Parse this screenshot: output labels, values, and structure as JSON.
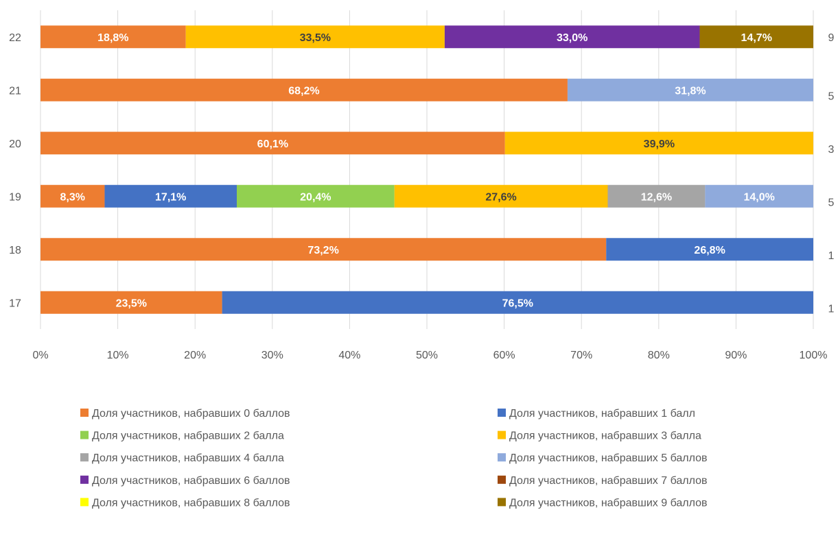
{
  "chart_data": {
    "type": "bar",
    "orientation": "horizontal",
    "stacked": "percent",
    "grid": true,
    "xlim": [
      0,
      100
    ],
    "x_ticks": [
      "0%",
      "10%",
      "20%",
      "30%",
      "40%",
      "50%",
      "60%",
      "70%",
      "80%",
      "90%",
      "100%"
    ],
    "categories": [
      "17",
      "18",
      "19",
      "20",
      "21",
      "22"
    ],
    "secondary_labels": [
      "1",
      "1",
      "5",
      "3",
      "5",
      "9"
    ],
    "legend_position": "bottom",
    "series": [
      {
        "name": "Доля участников, набравших 0 баллов",
        "color": "#ED7D31",
        "values": [
          23.5,
          73.2,
          8.3,
          60.1,
          68.2,
          18.8
        ],
        "labels": [
          "23,5%",
          "73,2%",
          "8,3%",
          "60,1%",
          "68,2%",
          "18,8%"
        ]
      },
      {
        "name": "Доля участников, набравших 1 балл",
        "color": "#4472C4",
        "values": [
          76.5,
          26.8,
          17.1,
          0,
          0,
          0
        ],
        "labels": [
          "76,5%",
          "26,8%",
          "17,1%",
          "",
          "",
          ""
        ]
      },
      {
        "name": "Доля участников, набравших 2 балла",
        "color": "#92D050",
        "values": [
          0,
          0,
          20.4,
          0,
          0,
          0
        ],
        "labels": [
          "",
          "",
          "20,4%",
          "",
          "",
          ""
        ]
      },
      {
        "name": "Доля участников, набравших 3 балла",
        "color": "#FFC000",
        "values": [
          0,
          0,
          27.6,
          39.9,
          0,
          33.5
        ],
        "labels": [
          "",
          "",
          "27,6%",
          "39,9%",
          "",
          "33,5%"
        ]
      },
      {
        "name": "Доля участников, набравших 4 балла",
        "color": "#A5A5A5",
        "values": [
          0,
          0,
          12.6,
          0,
          0,
          0
        ],
        "labels": [
          "",
          "",
          "12,6%",
          "",
          "",
          ""
        ]
      },
      {
        "name": "Доля участников, набравших 5 баллов",
        "color": "#8FAADC",
        "values": [
          0,
          0,
          14.0,
          0,
          31.8,
          0
        ],
        "labels": [
          "",
          "",
          "14,0%",
          "",
          "31,8%",
          ""
        ]
      },
      {
        "name": "Доля участников, набравших 6 баллов",
        "color": "#7030A0",
        "values": [
          0,
          0,
          0,
          0,
          0,
          33.0
        ],
        "labels": [
          "",
          "",
          "",
          "",
          "",
          "33,0%"
        ]
      },
      {
        "name": "Доля участников, набравших 7 баллов",
        "color": "#9E480E",
        "values": [
          0,
          0,
          0,
          0,
          0,
          0
        ],
        "labels": [
          "",
          "",
          "",
          "",
          "",
          ""
        ]
      },
      {
        "name": "Доля участников, набравших 8 баллов",
        "color": "#FFFF00",
        "values": [
          0,
          0,
          0,
          0,
          0,
          0
        ],
        "labels": [
          "",
          "",
          "",
          "",
          "",
          ""
        ]
      },
      {
        "name": "Доля участников, набравших 9 баллов",
        "color": "#997300",
        "values": [
          0,
          0,
          0,
          0,
          0,
          14.7
        ],
        "labels": [
          "",
          "",
          "",
          "",
          "",
          "14,7%"
        ]
      }
    ]
  }
}
